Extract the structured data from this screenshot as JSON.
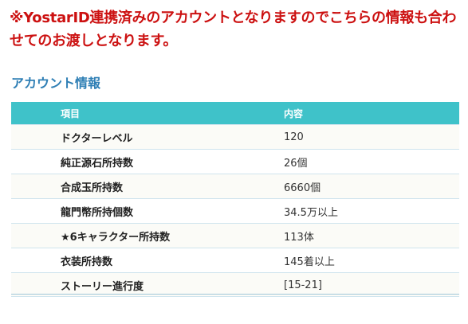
{
  "notice": {
    "text": "※YostarID連携済みのアカウントとなりますのでこちらの情報も合わせてのお渡しとなります。"
  },
  "section": {
    "title": "アカウント情報"
  },
  "table": {
    "header": {
      "item": "項目",
      "value": "内容"
    },
    "rows": [
      {
        "item": "ドクターレベル",
        "value": "120"
      },
      {
        "item": "純正源石所持数",
        "value": "26個"
      },
      {
        "item": "合成玉所持数",
        "value": "6660個"
      },
      {
        "item": "龍門幣所持個数",
        "value": "34.5万以上"
      },
      {
        "item": "★6キャラクター所持数",
        "value": "113体"
      },
      {
        "item": "衣装所持数",
        "value": "145着以上"
      },
      {
        "item": "ストーリー進行度",
        "value": "[15-21]"
      }
    ]
  },
  "colors": {
    "notice": "#cc1111",
    "section_title": "#2f7fb5",
    "table_header_bg": "#3fc2c9",
    "table_header_text": "#ffffff"
  }
}
